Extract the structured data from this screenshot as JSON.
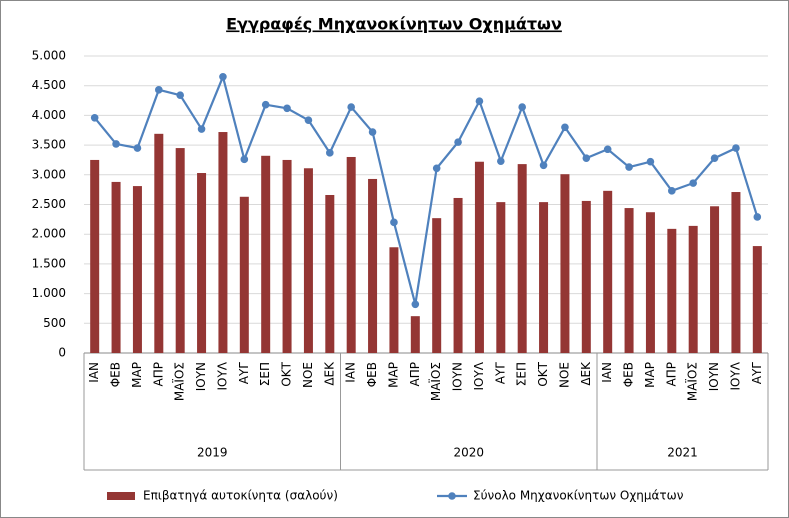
{
  "chart_data": {
    "type": "bar_line",
    "title": "Εγγραφές Μηχανοκίνητων Οχημάτων",
    "category_groups": [
      {
        "name": "2019",
        "categories": [
          "ΙΑΝ",
          "ΦΕΒ",
          "ΜΑΡ",
          "ΑΠΡ",
          "ΜΑΪΟΣ",
          "ΙΟΥΝ",
          "ΙΟΥΛ",
          "ΑΥΓ",
          "ΣΕΠ",
          "ΟΚΤ",
          "ΝΟΕ",
          "ΔΕΚ"
        ]
      },
      {
        "name": "2020",
        "categories": [
          "ΙΑΝ",
          "ΦΕΒ",
          "ΜΑΡ",
          "ΑΠΡ",
          "ΜΑΪΟΣ",
          "ΙΟΥΝ",
          "ΙΟΥΛ",
          "ΑΥΓ",
          "ΣΕΠ",
          "ΟΚΤ",
          "ΝΟΕ",
          "ΔΕΚ"
        ]
      },
      {
        "name": "2021",
        "categories": [
          "ΙΑΝ",
          "ΦΕΒ",
          "ΜΑΡ",
          "ΑΠΡ",
          "ΜΑΪΟΣ",
          "ΙΟΥΝ",
          "ΙΟΥΛ",
          "ΑΥΓ"
        ]
      }
    ],
    "series": [
      {
        "name": "Επιβατηγά αυτοκίνητα (σαλούν)",
        "type": "bar",
        "color": "#943634",
        "values": [
          3250,
          2880,
          2810,
          3690,
          3450,
          3030,
          3720,
          2630,
          3320,
          3250,
          3110,
          2660,
          3300,
          2930,
          1780,
          620,
          2270,
          2610,
          3220,
          2540,
          3180,
          2540,
          3010,
          2560,
          2730,
          2440,
          2370,
          2090,
          2140,
          2470,
          2710,
          1800
        ]
      },
      {
        "name": "Σύνολο Μηχανοκίνητων Οχημάτων",
        "type": "line",
        "color": "#4f81bd",
        "values": [
          3960,
          3520,
          3450,
          4430,
          4340,
          3770,
          4650,
          3260,
          4180,
          4120,
          3920,
          3370,
          4140,
          3720,
          2200,
          820,
          3110,
          3550,
          4240,
          3230,
          4140,
          3160,
          3800,
          3280,
          3430,
          3130,
          3220,
          2730,
          2860,
          3280,
          3450,
          2290
        ]
      }
    ],
    "ylim": [
      0,
      5000
    ],
    "yticks": [
      0,
      500,
      {
        "value": 1000,
        "label": "1.000"
      },
      {
        "value": 1500,
        "label": "1.500"
      },
      {
        "value": 2000,
        "label": "2.000"
      },
      {
        "value": 2500,
        "label": "2.500"
      },
      {
        "value": 3000,
        "label": "3.000"
      },
      {
        "value": 3500,
        "label": "3.500"
      },
      {
        "value": 4000,
        "label": "4.000"
      },
      {
        "value": 4500,
        "label": "4.500"
      },
      {
        "value": 5000,
        "label": "5.000"
      }
    ],
    "grid": true
  }
}
